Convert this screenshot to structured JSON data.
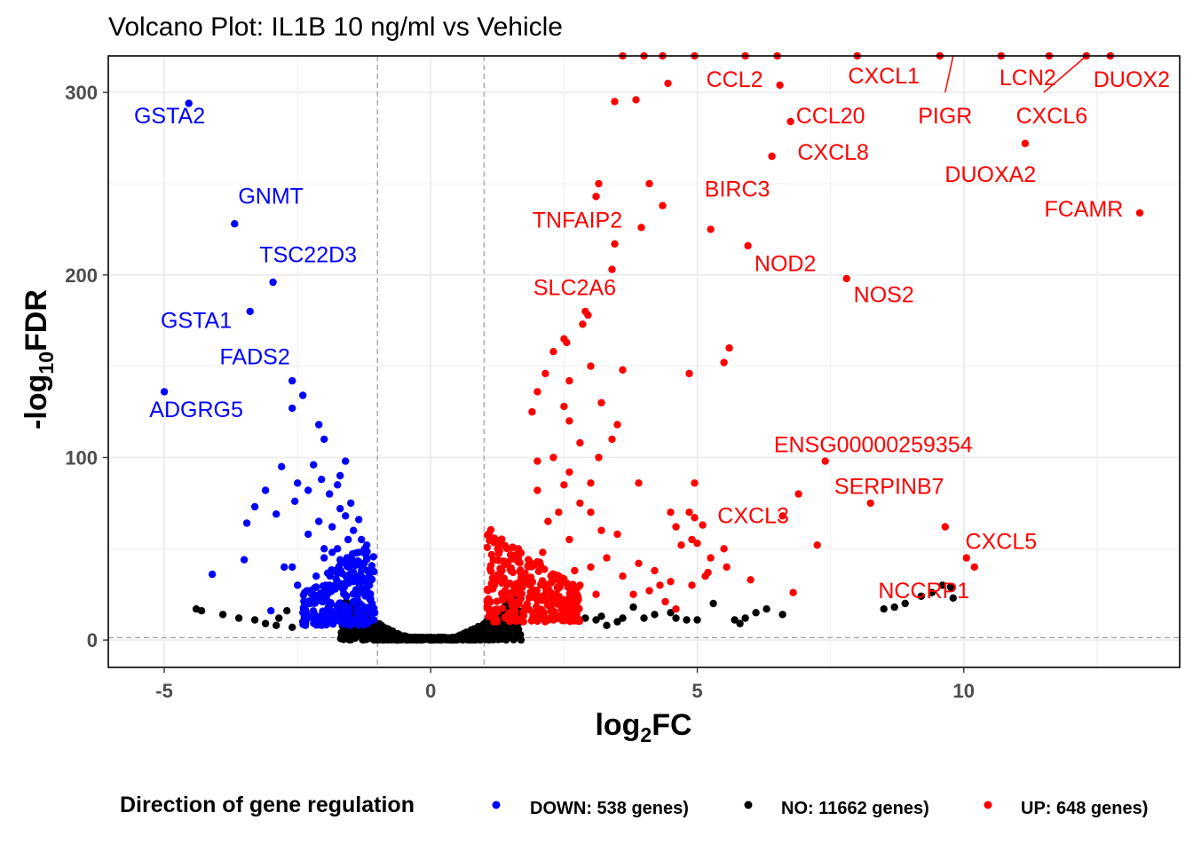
{
  "chart_data": {
    "type": "scatter",
    "title": "Volcano Plot: IL1B 10 ng/ml vs Vehicle",
    "xlabel_base": "log",
    "xlabel_sub": "2",
    "xlabel_rest": "FC",
    "ylabel_pre": "-log",
    "ylabel_sub": "10",
    "ylabel_rest": "FDR",
    "xlim": [
      -6.05,
      14.05
    ],
    "ylim": [
      -15,
      320
    ],
    "x_ticks": [
      {
        "value": -5,
        "label": "-5"
      },
      {
        "value": 0,
        "label": "0"
      },
      {
        "value": 5,
        "label": "5"
      },
      {
        "value": 10,
        "label": "10"
      }
    ],
    "y_ticks": [
      {
        "value": 0,
        "label": "0"
      },
      {
        "value": 100,
        "label": "100"
      },
      {
        "value": 200,
        "label": "200"
      },
      {
        "value": 300,
        "label": "300"
      }
    ],
    "threshold_lines": {
      "x": [
        -1,
        1
      ],
      "y": 1.3
    },
    "grid": true,
    "colors": {
      "DOWN": "#0000ff",
      "NO": "#000000",
      "UP": "#ff0000"
    },
    "legend": {
      "title": "Direction of gene regulation",
      "placement": "bottom",
      "entries": [
        {
          "key": "DOWN",
          "label": "DOWN: 538 genes)"
        },
        {
          "key": "NO",
          "label": "NO: 11662 genes)"
        },
        {
          "key": "UP",
          "label": "UP: 648 genes)"
        }
      ]
    },
    "series": [
      {
        "key": "DOWN",
        "points": [
          [
            -4.54,
            294
          ],
          [
            -3.68,
            228
          ],
          [
            -2.96,
            196
          ],
          [
            -3.39,
            180
          ],
          [
            -2.6,
            142
          ],
          [
            -2.4,
            134
          ],
          [
            -5.0,
            136
          ],
          [
            -2.6,
            127
          ],
          [
            -2.1,
            118
          ],
          [
            -2.0,
            110
          ],
          [
            -1.6,
            98
          ],
          [
            -1.7,
            90
          ],
          [
            -2.2,
            96
          ],
          [
            -2.8,
            95
          ],
          [
            -2.5,
            86
          ],
          [
            -3.1,
            82
          ],
          [
            -3.3,
            73
          ],
          [
            -2.9,
            69
          ],
          [
            -3.45,
            64
          ],
          [
            -3.5,
            44
          ],
          [
            -4.1,
            36
          ],
          [
            -2.55,
            76
          ],
          [
            -2.3,
            58
          ],
          [
            -2.75,
            40
          ],
          [
            -2.5,
            30
          ],
          [
            -2.2,
            25
          ],
          [
            -2.0,
            45
          ],
          [
            -1.85,
            62
          ],
          [
            -1.6,
            68
          ],
          [
            -1.55,
            55
          ],
          [
            -1.7,
            72
          ],
          [
            -1.75,
            50
          ],
          [
            -1.45,
            60
          ],
          [
            -1.35,
            48
          ],
          [
            -1.25,
            42
          ],
          [
            -1.15,
            30
          ],
          [
            -1.2,
            52
          ],
          [
            -1.3,
            38
          ],
          [
            -1.5,
            35
          ],
          [
            -1.65,
            28
          ],
          [
            -1.8,
            38
          ],
          [
            -1.95,
            22
          ],
          [
            -2.4,
            15
          ],
          [
            -2.6,
            40
          ],
          [
            -1.4,
            25
          ],
          [
            -1.1,
            20
          ],
          [
            -1.25,
            28
          ],
          [
            -1.05,
            15
          ],
          [
            -1.6,
            18
          ],
          [
            -1.9,
            30
          ],
          [
            -2.15,
            35
          ],
          [
            -2.1,
            65
          ],
          [
            -1.9,
            80
          ],
          [
            -1.75,
            85
          ],
          [
            -1.5,
            75
          ],
          [
            -2.05,
            88
          ],
          [
            -2.3,
            82
          ],
          [
            -1.35,
            66
          ],
          [
            -1.2,
            45
          ],
          [
            -1.45,
            32
          ],
          [
            -3.0,
            16
          ],
          [
            -1.7,
            44
          ],
          [
            -1.55,
            40
          ],
          [
            -2.0,
            50
          ],
          [
            -1.85,
            48
          ],
          [
            -1.3,
            55
          ],
          [
            -1.15,
            36
          ]
        ],
        "cloud": {
          "x_min": -2.4,
          "x_max": -1.05,
          "y_min": 8,
          "y_max": 58,
          "count": 230
        }
      },
      {
        "key": "NO",
        "points": [
          [
            -4.4,
            17
          ],
          [
            -3.9,
            14
          ],
          [
            -3.6,
            12
          ],
          [
            -3.3,
            11
          ],
          [
            -3.1,
            9
          ],
          [
            -2.9,
            8
          ],
          [
            -2.6,
            7
          ],
          [
            -2.85,
            12
          ],
          [
            -4.3,
            16
          ],
          [
            -2.7,
            16
          ],
          [
            -2.4,
            10
          ],
          [
            3.5,
            10
          ],
          [
            4.0,
            12
          ],
          [
            4.5,
            15
          ],
          [
            5.0,
            11
          ],
          [
            5.3,
            20
          ],
          [
            5.7,
            11
          ],
          [
            5.9,
            12
          ],
          [
            6.1,
            15
          ],
          [
            6.3,
            17
          ],
          [
            6.6,
            14
          ],
          [
            8.5,
            17
          ],
          [
            8.7,
            18
          ],
          [
            8.9,
            20
          ],
          [
            9.2,
            24
          ],
          [
            9.4,
            26
          ],
          [
            9.6,
            30
          ],
          [
            9.75,
            29
          ],
          [
            9.8,
            23
          ],
          [
            3.8,
            18
          ],
          [
            4.2,
            14
          ],
          [
            4.6,
            12
          ],
          [
            3.3,
            8
          ],
          [
            3.2,
            13
          ],
          [
            2.7,
            14
          ],
          [
            2.9,
            12
          ],
          [
            3.1,
            11
          ],
          [
            3.6,
            12
          ],
          [
            4.8,
            11
          ],
          [
            5.8,
            9
          ]
        ],
        "cloud": {
          "x_min": -1.7,
          "x_max": 1.7,
          "y_min": 0,
          "y_max": 28,
          "count": 700,
          "vshape": true
        }
      },
      {
        "key": "UP",
        "points": [
          [
            3.45,
            295
          ],
          [
            3.85,
            296
          ],
          [
            4.45,
            305
          ],
          [
            3.15,
            250
          ],
          [
            3.1,
            243
          ],
          [
            4.1,
            250
          ],
          [
            4.35,
            238
          ],
          [
            3.95,
            226
          ],
          [
            3.45,
            217
          ],
          [
            3.4,
            203
          ],
          [
            2.9,
            180
          ],
          [
            2.95,
            178
          ],
          [
            2.85,
            173
          ],
          [
            2.5,
            165
          ],
          [
            2.55,
            163
          ],
          [
            2.3,
            158
          ],
          [
            3.0,
            150
          ],
          [
            3.6,
            148
          ],
          [
            2.15,
            146
          ],
          [
            2.6,
            142
          ],
          [
            2.0,
            136
          ],
          [
            2.5,
            128
          ],
          [
            3.2,
            130
          ],
          [
            1.9,
            125
          ],
          [
            2.6,
            120
          ],
          [
            3.5,
            118
          ],
          [
            3.4,
            110
          ],
          [
            2.8,
            108
          ],
          [
            3.15,
            100
          ],
          [
            2.3,
            100
          ],
          [
            2.0,
            98
          ],
          [
            2.6,
            92
          ],
          [
            3.0,
            86
          ],
          [
            2.5,
            85
          ],
          [
            2.0,
            82
          ],
          [
            3.9,
            86
          ],
          [
            4.95,
            86
          ],
          [
            4.5,
            70
          ],
          [
            4.85,
            70
          ],
          [
            4.6,
            62
          ],
          [
            4.9,
            55
          ],
          [
            4.95,
            67
          ],
          [
            5.1,
            63
          ],
          [
            4.7,
            52
          ],
          [
            5.0,
            53
          ],
          [
            5.5,
            50
          ],
          [
            5.25,
            45
          ],
          [
            5.2,
            37
          ],
          [
            5.55,
            40
          ],
          [
            5.15,
            35
          ],
          [
            4.9,
            30
          ],
          [
            4.5,
            32
          ],
          [
            4.3,
            30
          ],
          [
            4.1,
            27
          ],
          [
            3.8,
            25
          ],
          [
            4.4,
            21
          ],
          [
            4.6,
            17
          ],
          [
            6.0,
            33
          ],
          [
            6.6,
            68
          ],
          [
            6.9,
            80
          ],
          [
            7.25,
            52
          ],
          [
            7.4,
            98
          ],
          [
            8.25,
            75
          ],
          [
            9.65,
            62
          ],
          [
            10.05,
            45
          ],
          [
            10.2,
            40
          ],
          [
            6.8,
            26
          ],
          [
            5.5,
            152
          ],
          [
            5.6,
            160
          ],
          [
            4.85,
            146
          ],
          [
            5.25,
            225
          ],
          [
            5.95,
            216
          ],
          [
            7.8,
            198
          ],
          [
            6.4,
            265
          ],
          [
            6.75,
            284
          ],
          [
            6.55,
            304
          ],
          [
            11.15,
            272
          ],
          [
            13.3,
            234
          ],
          [
            10.7,
            320
          ],
          [
            11.6,
            320
          ],
          [
            12.3,
            320
          ],
          [
            12.75,
            320
          ],
          [
            9.55,
            320
          ],
          [
            8.0,
            320
          ],
          [
            6.5,
            320
          ],
          [
            5.9,
            320
          ],
          [
            4.0,
            320
          ],
          [
            3.6,
            320
          ],
          [
            4.35,
            320
          ],
          [
            4.95,
            320
          ],
          [
            3.0,
            70
          ],
          [
            3.2,
            60
          ],
          [
            2.8,
            75
          ],
          [
            2.6,
            55
          ],
          [
            2.4,
            70
          ],
          [
            2.2,
            65
          ],
          [
            3.5,
            58
          ],
          [
            3.3,
            45
          ],
          [
            3.0,
            40
          ],
          [
            2.8,
            30
          ],
          [
            3.6,
            35
          ],
          [
            3.9,
            42
          ],
          [
            4.2,
            38
          ],
          [
            2.1,
            48
          ],
          [
            2.7,
            38
          ],
          [
            3.1,
            25
          ]
        ],
        "cloud": {
          "x_min": 1.05,
          "x_max": 2.8,
          "y_min": 10,
          "y_max": 62,
          "count": 320
        }
      }
    ],
    "annotations": [
      {
        "text": "GSTA2",
        "x": -4.9,
        "y": 283,
        "color": "#0000ff"
      },
      {
        "text": "GNMT",
        "x": -3.0,
        "y": 239,
        "color": "#0000ff"
      },
      {
        "text": "TSC22D3",
        "x": -2.3,
        "y": 207,
        "color": "#0000ff"
      },
      {
        "text": "GSTA1",
        "x": -4.4,
        "y": 171,
        "color": "#0000ff"
      },
      {
        "text": "FADS2",
        "x": -3.3,
        "y": 151,
        "color": "#0000ff"
      },
      {
        "text": "ADGRG5",
        "x": -4.4,
        "y": 122,
        "color": "#0000ff"
      },
      {
        "text": "CCL2",
        "x": 5.7,
        "y": 303,
        "color": "#ff0000"
      },
      {
        "text": "CXCL1",
        "x": 8.5,
        "y": 305,
        "color": "#ff0000"
      },
      {
        "text": "LCN2",
        "x": 11.2,
        "y": 304,
        "color": "#ff0000"
      },
      {
        "text": "DUOX2",
        "x": 13.15,
        "y": 303,
        "color": "#ff0000"
      },
      {
        "text": "PIGR",
        "x": 9.65,
        "y": 283,
        "color": "#ff0000"
      },
      {
        "text": "CXCL6",
        "x": 11.65,
        "y": 283,
        "color": "#ff0000"
      },
      {
        "text": "CCL20",
        "x": 7.5,
        "y": 283,
        "color": "#ff0000"
      },
      {
        "text": "CXCL8",
        "x": 7.55,
        "y": 263,
        "color": "#ff0000"
      },
      {
        "text": "DUOXA2",
        "x": 10.5,
        "y": 251,
        "color": "#ff0000"
      },
      {
        "text": "BIRC3",
        "x": 5.75,
        "y": 243,
        "color": "#ff0000"
      },
      {
        "text": "FCAMR",
        "x": 12.25,
        "y": 232,
        "color": "#ff0000"
      },
      {
        "text": "TNFAIP2",
        "x": 2.75,
        "y": 226,
        "color": "#ff0000"
      },
      {
        "text": "NOD2",
        "x": 6.65,
        "y": 202,
        "color": "#ff0000"
      },
      {
        "text": "NOS2",
        "x": 8.5,
        "y": 185,
        "color": "#ff0000"
      },
      {
        "text": "SLC2A6",
        "x": 2.7,
        "y": 189,
        "color": "#ff0000"
      },
      {
        "text": "ENSG00000259354",
        "x": 8.3,
        "y": 103,
        "color": "#ff0000"
      },
      {
        "text": "SERPINB7",
        "x": 8.6,
        "y": 80,
        "color": "#ff0000"
      },
      {
        "text": "CXCL3",
        "x": 6.05,
        "y": 64,
        "color": "#ff0000"
      },
      {
        "text": "CXCL5",
        "x": 10.7,
        "y": 50,
        "color": "#ff0000"
      },
      {
        "text": "NCCRP1",
        "x": 9.25,
        "y": 23,
        "color": "#ff0000"
      }
    ],
    "leader_lines": [
      {
        "x1": 9.8,
        "y1": 320,
        "x2": 9.65,
        "y2": 300
      },
      {
        "x1": 12.3,
        "y1": 320,
        "x2": 11.5,
        "y2": 300
      }
    ]
  }
}
